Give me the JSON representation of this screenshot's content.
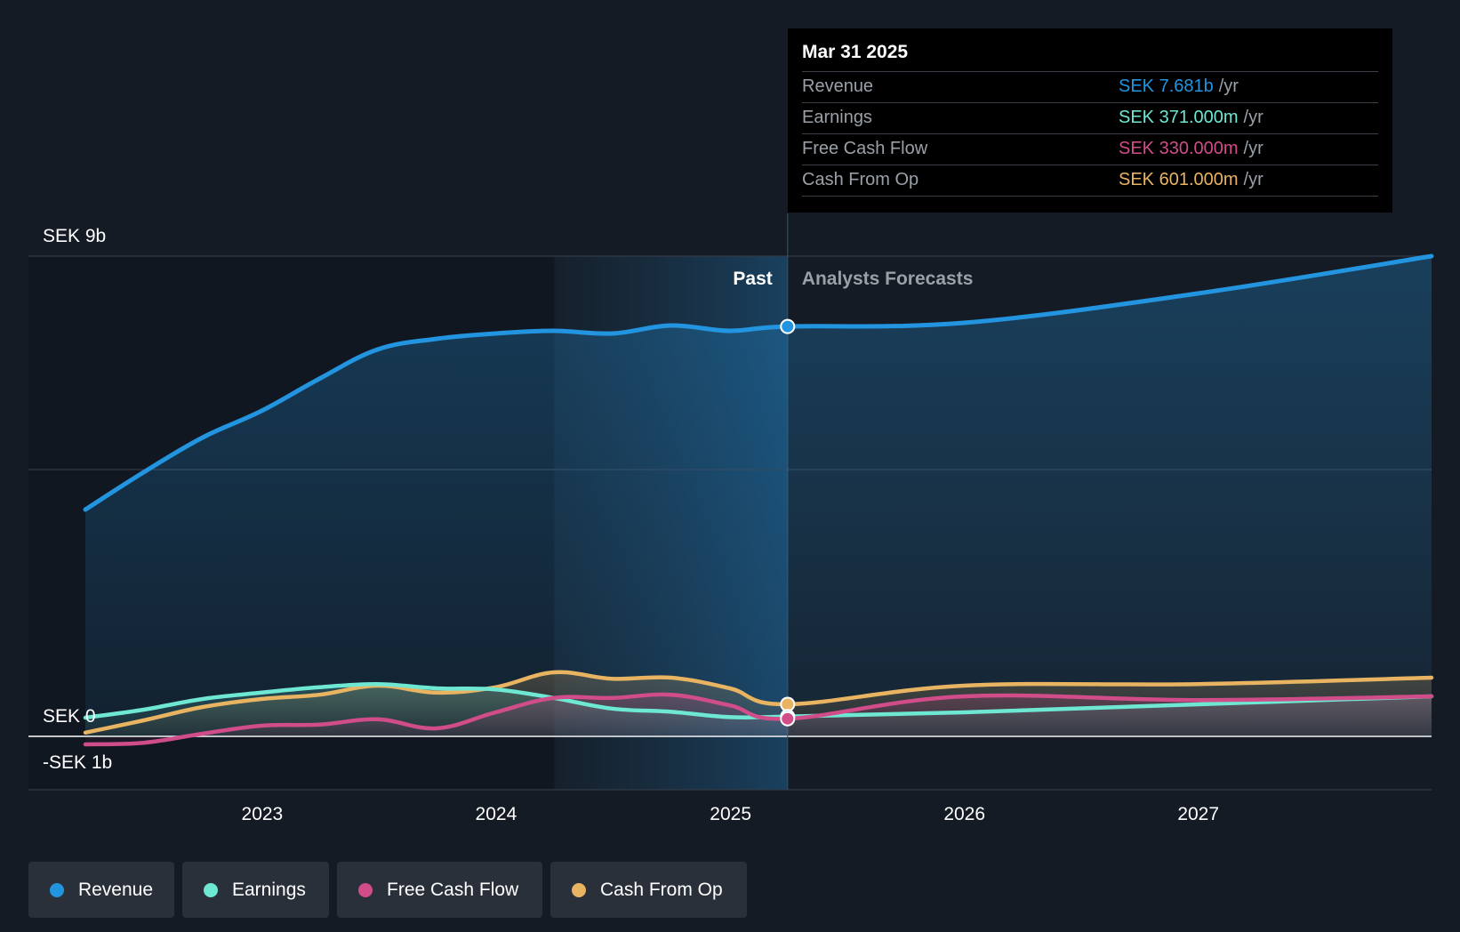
{
  "colors": {
    "background": "#151b24",
    "revenue": "#2394df",
    "earnings": "#6ee7d3",
    "free_cash_flow": "#d04d8a",
    "cash_from_op": "#e9b462",
    "grid": "#343b47"
  },
  "tooltip": {
    "date": "Mar 31 2025",
    "rows": [
      {
        "label": "Revenue",
        "value": "SEK 7.681b",
        "unit": "/yr",
        "color": "#2394df"
      },
      {
        "label": "Earnings",
        "value": "SEK 371.000m",
        "unit": "/yr",
        "color": "#6ee7d3"
      },
      {
        "label": "Free Cash Flow",
        "value": "SEK 330.000m",
        "unit": "/yr",
        "color": "#d04d8a"
      },
      {
        "label": "Cash From Op",
        "value": "SEK 601.000m",
        "unit": "/yr",
        "color": "#e9b462"
      }
    ]
  },
  "chart_data": {
    "type": "line",
    "title": "",
    "xlabel": "",
    "ylabel": "",
    "x_range": [
      "2022-03-31",
      "2027-12-31"
    ],
    "ylim": [
      -1,
      9
    ],
    "y_unit": "SEK b",
    "y_tick_labels": [
      {
        "value": 9,
        "label": "SEK 9b"
      },
      {
        "value": 0,
        "label": "SEK 0"
      },
      {
        "value": -1,
        "label": "-SEK 1b"
      }
    ],
    "gridlines": [
      9,
      5,
      0,
      -1
    ],
    "x_tick_labels": [
      {
        "date": "2023-01-01",
        "label": "2023"
      },
      {
        "date": "2024-01-01",
        "label": "2024"
      },
      {
        "date": "2025-01-01",
        "label": "2025"
      },
      {
        "date": "2026-01-01",
        "label": "2026"
      },
      {
        "date": "2027-01-01",
        "label": "2027"
      }
    ],
    "past_label": "Past",
    "forecast_label": "Analysts Forecasts",
    "past_end": "2025-03-31",
    "highlight_start": "2024-03-31",
    "legend_position": "bottom-left",
    "series": [
      {
        "name": "Revenue",
        "key": "revenue",
        "color": "#2394df",
        "points": [
          [
            "2022-03-31",
            4.25
          ],
          [
            "2022-06-30",
            4.95
          ],
          [
            "2022-09-30",
            5.6
          ],
          [
            "2022-12-31",
            6.1
          ],
          [
            "2023-03-31",
            6.7
          ],
          [
            "2023-06-30",
            7.25
          ],
          [
            "2023-09-30",
            7.45
          ],
          [
            "2023-12-31",
            7.55
          ],
          [
            "2024-03-31",
            7.6
          ],
          [
            "2024-06-30",
            7.55
          ],
          [
            "2024-09-30",
            7.7
          ],
          [
            "2024-12-31",
            7.6
          ],
          [
            "2025-03-31",
            7.681
          ],
          [
            "2025-12-31",
            7.75
          ],
          [
            "2026-12-31",
            8.3
          ],
          [
            "2027-12-31",
            9.0
          ]
        ]
      },
      {
        "name": "Earnings",
        "key": "earnings",
        "color": "#6ee7d3",
        "points": [
          [
            "2022-03-31",
            0.35
          ],
          [
            "2022-06-30",
            0.5
          ],
          [
            "2022-09-30",
            0.7
          ],
          [
            "2022-12-31",
            0.82
          ],
          [
            "2023-03-31",
            0.92
          ],
          [
            "2023-06-30",
            0.98
          ],
          [
            "2023-09-30",
            0.9
          ],
          [
            "2023-12-31",
            0.88
          ],
          [
            "2024-03-31",
            0.72
          ],
          [
            "2024-06-30",
            0.52
          ],
          [
            "2024-09-30",
            0.46
          ],
          [
            "2024-12-31",
            0.36
          ],
          [
            "2025-03-31",
            0.371
          ],
          [
            "2025-12-31",
            0.45
          ],
          [
            "2026-12-31",
            0.6
          ],
          [
            "2027-12-31",
            0.75
          ]
        ]
      },
      {
        "name": "Free Cash Flow",
        "key": "free_cash_flow",
        "color": "#d04d8a",
        "points": [
          [
            "2022-03-31",
            -0.15
          ],
          [
            "2022-06-30",
            -0.12
          ],
          [
            "2022-09-30",
            0.05
          ],
          [
            "2022-12-31",
            0.2
          ],
          [
            "2023-03-31",
            0.22
          ],
          [
            "2023-06-30",
            0.32
          ],
          [
            "2023-09-30",
            0.15
          ],
          [
            "2023-12-31",
            0.45
          ],
          [
            "2024-03-31",
            0.72
          ],
          [
            "2024-06-30",
            0.72
          ],
          [
            "2024-09-30",
            0.78
          ],
          [
            "2024-12-31",
            0.58
          ],
          [
            "2025-03-31",
            0.33
          ],
          [
            "2025-12-31",
            0.75
          ],
          [
            "2026-12-31",
            0.68
          ],
          [
            "2027-12-31",
            0.75
          ]
        ]
      },
      {
        "name": "Cash From Op",
        "key": "cash_from_op",
        "color": "#e9b462",
        "points": [
          [
            "2022-03-31",
            0.07
          ],
          [
            "2022-06-30",
            0.3
          ],
          [
            "2022-09-30",
            0.55
          ],
          [
            "2022-12-31",
            0.7
          ],
          [
            "2023-03-31",
            0.78
          ],
          [
            "2023-06-30",
            0.95
          ],
          [
            "2023-09-30",
            0.82
          ],
          [
            "2023-12-31",
            0.92
          ],
          [
            "2024-03-31",
            1.2
          ],
          [
            "2024-06-30",
            1.08
          ],
          [
            "2024-09-30",
            1.1
          ],
          [
            "2024-12-31",
            0.9
          ],
          [
            "2025-03-31",
            0.601
          ],
          [
            "2025-12-31",
            0.95
          ],
          [
            "2026-12-31",
            0.98
          ],
          [
            "2027-12-31",
            1.1
          ]
        ]
      }
    ]
  }
}
